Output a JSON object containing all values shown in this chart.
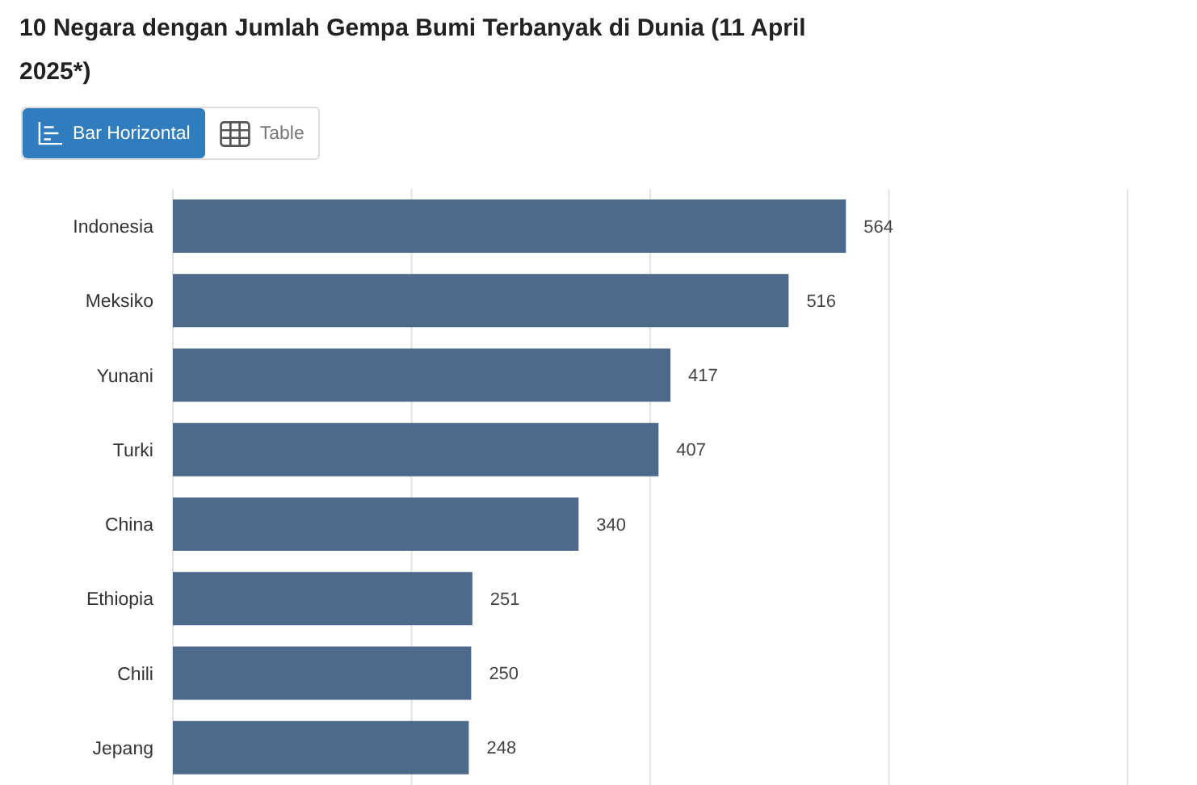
{
  "chart_data": {
    "type": "bar",
    "orientation": "horizontal",
    "title": "10 Negara dengan Jumlah Gempa Bumi Terbanyak di Dunia (11 April 2025*)",
    "annotations": [
      "Bar Horizontal",
      "Table"
    ],
    "categories": [
      "Indonesia",
      "Meksiko",
      "Yunani",
      "Turki",
      "China",
      "Ethiopia",
      "Chili",
      "Jepang"
    ],
    "values": [
      564,
      516,
      417,
      407,
      340,
      251,
      250,
      248
    ],
    "color": "#4e6a8b",
    "xlim": [
      0,
      800
    ],
    "grid": "x",
    "tick_labels": "y",
    "data_labels": true
  }
}
